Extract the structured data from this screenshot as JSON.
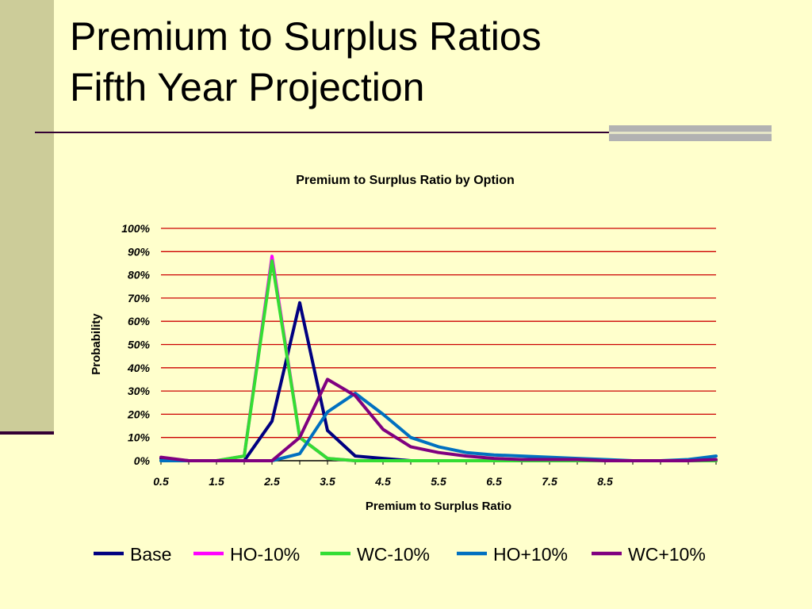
{
  "slide": {
    "title_line1": "Premium to Surplus Ratios",
    "title_line2": "Fifth Year Projection"
  },
  "colors": {
    "background": "#FFFFCC",
    "gridline": "#CC0000",
    "Base": "#000080",
    "HO-10%": "#FF00FF",
    "WC-10%": "#33DD33",
    "HO+10%": "#0070C0",
    "WC+10%": "#800080"
  },
  "chart_data": {
    "type": "line",
    "title": "Premium to Surplus Ratio by Option",
    "xlabel": "Premium to Surplus Ratio",
    "ylabel": "Probability",
    "x": [
      0.5,
      1.0,
      1.5,
      2.0,
      2.5,
      3.0,
      3.5,
      4.0,
      4.5,
      5.0,
      5.5,
      6.0,
      6.5,
      7.0,
      7.5,
      8.0,
      8.5,
      9.0,
      9.5,
      10.0,
      10.5
    ],
    "xtick_labels": [
      "0.5",
      "1.5",
      "2.5",
      "3.5",
      "4.5",
      "5.5",
      "6.5",
      "7.5",
      "8.5"
    ],
    "xtick_values": [
      0.5,
      1.5,
      2.5,
      3.5,
      4.5,
      5.5,
      6.5,
      7.5,
      8.5
    ],
    "ylim": [
      0,
      1
    ],
    "yticks": [
      0,
      0.1,
      0.2,
      0.3,
      0.4,
      0.5,
      0.6,
      0.7,
      0.8,
      0.9,
      1.0
    ],
    "ytick_labels": [
      "0%",
      "10%",
      "20%",
      "30%",
      "40%",
      "50%",
      "60%",
      "70%",
      "80%",
      "90%",
      "100%"
    ],
    "grid": true,
    "legend_position": "bottom",
    "series": [
      {
        "name": "Base",
        "values": [
          0.01,
          0.0,
          0.0,
          0.0,
          0.17,
          0.68,
          0.13,
          0.02,
          0.01,
          0.0,
          0.0,
          0.0,
          0.0,
          0.0,
          0.0,
          0.0,
          0.0,
          0.0,
          0.0,
          0.0,
          0.0
        ]
      },
      {
        "name": "HO-10%",
        "values": [
          0.0,
          0.0,
          0.0,
          0.02,
          0.88,
          0.1,
          0.01,
          0.0,
          0.0,
          0.0,
          0.0,
          0.0,
          0.0,
          0.0,
          0.0,
          0.0,
          0.0,
          0.0,
          0.0,
          0.0,
          0.0
        ]
      },
      {
        "name": "WC-10%",
        "values": [
          0.0,
          0.0,
          0.0,
          0.02,
          0.86,
          0.1,
          0.01,
          0.0,
          0.0,
          0.0,
          0.0,
          0.0,
          0.0,
          0.0,
          0.0,
          0.0,
          0.0,
          0.0,
          0.0,
          0.0,
          0.0
        ]
      },
      {
        "name": "HO+10%",
        "values": [
          0.0,
          0.0,
          0.0,
          0.0,
          0.0,
          0.03,
          0.21,
          0.29,
          0.2,
          0.1,
          0.06,
          0.035,
          0.025,
          0.02,
          0.015,
          0.01,
          0.005,
          0.0,
          0.0,
          0.005,
          0.02
        ]
      },
      {
        "name": "WC+10%",
        "values": [
          0.015,
          0.0,
          0.0,
          0.0,
          0.0,
          0.1,
          0.35,
          0.28,
          0.135,
          0.06,
          0.035,
          0.02,
          0.01,
          0.005,
          0.005,
          0.005,
          0.0,
          0.0,
          0.0,
          0.0,
          0.005
        ]
      }
    ]
  }
}
